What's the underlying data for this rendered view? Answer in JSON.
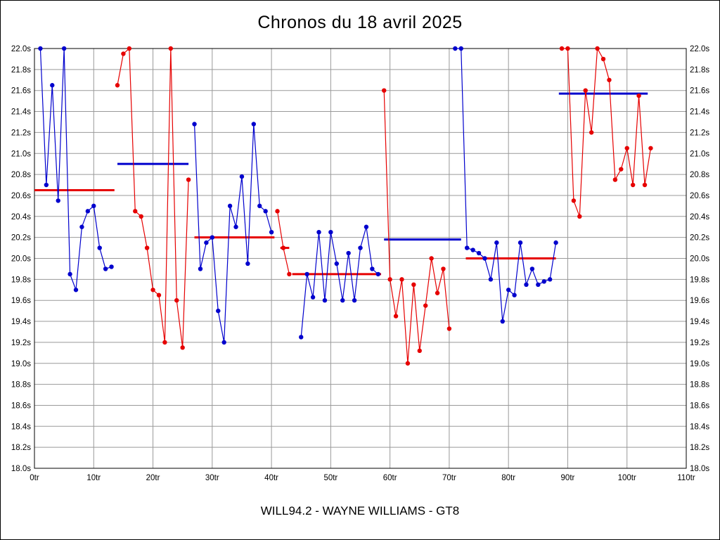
{
  "page": {
    "title": "Chronos du 18 avril 2025",
    "subtitle": "WILL94.2 - WAYNE WILLIAMS - GT8"
  },
  "chart_data": {
    "type": "line",
    "title": "Chronos du 18 avril 2025",
    "subtitle": "WILL94.2 - WAYNE WILLIAMS - GT8",
    "xlabel": "",
    "ylabel": "",
    "x_unit": "tr",
    "y_unit": "s",
    "xlim": [
      0,
      110
    ],
    "ylim": [
      18.0,
      22.0
    ],
    "grid": true,
    "legend": "none",
    "colors": {
      "blue": "#0000cd",
      "red": "#e60000",
      "grid": "#999999",
      "axis": "#000000",
      "background": "#ffffff",
      "text": "#000000"
    },
    "x_ticks": [
      0,
      10,
      20,
      30,
      40,
      50,
      60,
      70,
      80,
      90,
      100,
      110
    ],
    "x_tick_labels": [
      "0tr",
      "10tr",
      "20tr",
      "30tr",
      "40tr",
      "50tr",
      "60tr",
      "70tr",
      "80tr",
      "90tr",
      "100tr",
      "110tr"
    ],
    "y_ticks": [
      18.0,
      18.2,
      18.4,
      18.6,
      18.8,
      19.0,
      19.2,
      19.4,
      19.6,
      19.8,
      20.0,
      20.2,
      20.4,
      20.6,
      20.8,
      21.0,
      21.2,
      21.4,
      21.6,
      21.8,
      22.0
    ],
    "y_tick_labels": [
      "18.0s",
      "18.2s",
      "18.4s",
      "18.6s",
      "18.8s",
      "19.0s",
      "19.2s",
      "19.4s",
      "19.6s",
      "19.8s",
      "20.0s",
      "20.2s",
      "20.4s",
      "20.6s",
      "20.8s",
      "21.0s",
      "21.2s",
      "21.4s",
      "21.6s",
      "21.8s",
      "22.0s"
    ],
    "series": [
      {
        "name": "segment-1-blue",
        "color": "#0000cd",
        "points": [
          [
            1,
            22.0
          ],
          [
            2,
            20.7
          ],
          [
            3,
            21.65
          ],
          [
            4,
            20.55
          ],
          [
            5,
            22.0
          ],
          [
            6,
            19.85
          ],
          [
            7,
            19.7
          ],
          [
            8,
            20.3
          ],
          [
            9,
            20.45
          ],
          [
            10,
            20.5
          ],
          [
            11,
            20.1
          ],
          [
            12,
            19.9
          ],
          [
            13,
            19.92
          ]
        ]
      },
      {
        "name": "segment-2-red",
        "color": "#e60000",
        "points": [
          [
            14,
            21.65
          ],
          [
            15,
            21.95
          ],
          [
            16,
            22.0
          ],
          [
            17,
            20.45
          ],
          [
            18,
            20.4
          ],
          [
            19,
            20.1
          ],
          [
            20,
            19.7
          ],
          [
            21,
            19.65
          ],
          [
            22,
            19.2
          ],
          [
            23,
            22.0
          ],
          [
            24,
            19.6
          ],
          [
            25,
            19.15
          ],
          [
            26,
            20.75
          ]
        ]
      },
      {
        "name": "segment-3-blue",
        "color": "#0000cd",
        "points": [
          [
            27,
            21.28
          ],
          [
            28,
            19.9
          ],
          [
            29,
            20.15
          ],
          [
            30,
            20.2
          ],
          [
            31,
            19.5
          ],
          [
            32,
            19.2
          ],
          [
            33,
            20.5
          ],
          [
            34,
            20.3
          ],
          [
            35,
            20.78
          ],
          [
            36,
            19.95
          ],
          [
            37,
            21.28
          ],
          [
            38,
            20.5
          ],
          [
            39,
            20.45
          ],
          [
            40,
            20.25
          ]
        ]
      },
      {
        "name": "segment-4-red",
        "color": "#e60000",
        "points": [
          [
            41,
            20.45
          ],
          [
            42,
            20.1
          ],
          [
            43,
            19.85
          ]
        ]
      },
      {
        "name": "segment-5-blue",
        "color": "#0000cd",
        "points": [
          [
            45,
            19.25
          ],
          [
            46,
            19.85
          ],
          [
            47,
            19.63
          ],
          [
            48,
            20.25
          ],
          [
            49,
            19.6
          ],
          [
            50,
            20.25
          ],
          [
            51,
            19.95
          ],
          [
            52,
            19.6
          ],
          [
            53,
            20.05
          ],
          [
            54,
            19.6
          ],
          [
            55,
            20.1
          ],
          [
            56,
            20.3
          ],
          [
            57,
            19.9
          ],
          [
            58,
            19.85
          ]
        ]
      },
      {
        "name": "segment-6-red",
        "color": "#e60000",
        "points": [
          [
            59,
            21.6
          ],
          [
            60,
            19.8
          ],
          [
            61,
            19.45
          ],
          [
            62,
            19.8
          ],
          [
            63,
            19.0
          ],
          [
            64,
            19.75
          ],
          [
            65,
            19.12
          ],
          [
            66,
            19.55
          ],
          [
            67,
            20.0
          ],
          [
            68,
            19.67
          ],
          [
            69,
            19.9
          ],
          [
            70,
            19.33
          ]
        ]
      },
      {
        "name": "segment-7-blue",
        "color": "#0000cd",
        "points": [
          [
            71,
            22.0
          ],
          [
            72,
            22.0
          ],
          [
            73,
            20.1
          ],
          [
            74,
            20.08
          ],
          [
            75,
            20.05
          ],
          [
            76,
            20.0
          ],
          [
            77,
            19.8
          ],
          [
            78,
            20.15
          ],
          [
            79,
            19.4
          ],
          [
            80,
            19.7
          ],
          [
            81,
            19.65
          ],
          [
            82,
            20.15
          ],
          [
            83,
            19.75
          ],
          [
            84,
            19.9
          ],
          [
            85,
            19.75
          ],
          [
            86,
            19.78
          ],
          [
            87,
            19.8
          ],
          [
            88,
            20.15
          ]
        ]
      },
      {
        "name": "segment-8-red",
        "color": "#e60000",
        "points": [
          [
            89,
            22.0
          ],
          [
            90,
            22.0
          ],
          [
            91,
            20.55
          ],
          [
            92,
            20.4
          ],
          [
            93,
            21.6
          ],
          [
            94,
            21.2
          ],
          [
            95,
            22.0
          ],
          [
            96,
            21.9
          ],
          [
            97,
            21.7
          ],
          [
            98,
            20.75
          ],
          [
            99,
            20.85
          ],
          [
            100,
            21.05
          ],
          [
            101,
            20.7
          ],
          [
            102,
            21.55
          ],
          [
            103,
            20.7
          ],
          [
            104,
            21.05
          ]
        ]
      }
    ],
    "average_lines": [
      {
        "name": "avg-1",
        "color": "#e60000",
        "y": 20.65,
        "x1": 0,
        "x2": 13.5
      },
      {
        "name": "avg-2",
        "color": "#0000cd",
        "y": 20.9,
        "x1": 14,
        "x2": 26
      },
      {
        "name": "avg-3",
        "color": "#e60000",
        "y": 20.2,
        "x1": 27,
        "x2": 40.5
      },
      {
        "name": "avg-4",
        "color": "#e60000",
        "y": 20.1,
        "x1": 41.5,
        "x2": 43
      },
      {
        "name": "avg-5",
        "color": "#e60000",
        "y": 19.85,
        "x1": 43.5,
        "x2": 58.5
      },
      {
        "name": "avg-6",
        "color": "#0000cd",
        "y": 20.18,
        "x1": 59,
        "x2": 72
      },
      {
        "name": "avg-7",
        "color": "#e60000",
        "y": 20.0,
        "x1": 72.8,
        "x2": 88
      },
      {
        "name": "avg-8",
        "color": "#0000cd",
        "y": 21.57,
        "x1": 88.5,
        "x2": 103.5
      }
    ]
  }
}
